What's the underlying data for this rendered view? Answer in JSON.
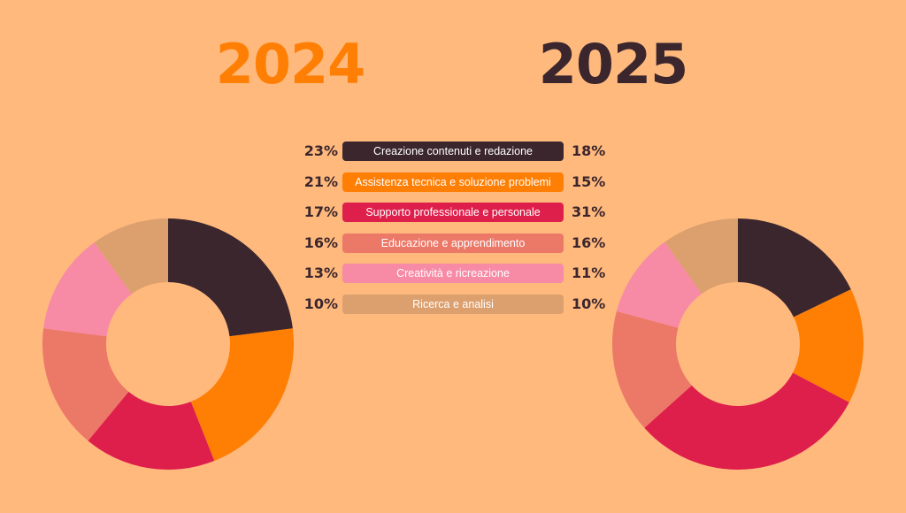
{
  "years": {
    "left": "2024",
    "right": "2025"
  },
  "colors": {
    "left_year": "#FF7F05",
    "right_year": "#3B262D"
  },
  "chart_data": {
    "type": "pie",
    "variant": "donut",
    "categories": [
      "Creazione contenuti e redazione",
      "Assistenza tecnica e soluzione problemi",
      "Supporto professionale e personale",
      "Educazione e apprendimento",
      "Creatività e ricreazione",
      "Ricerca e analisi"
    ],
    "colors": [
      "#3B262D",
      "#FF7F05",
      "#DE1F4B",
      "#EC7868",
      "#F78AA4",
      "#DCA06E"
    ],
    "text_colors": [
      "#FFFFFF",
      "#FFFFFF",
      "#FFFFFF",
      "#FFFFFF",
      "#FFFFFF",
      "#FFFFFF"
    ],
    "series": [
      {
        "name": "2024",
        "values": [
          23,
          21,
          17,
          16,
          13,
          10
        ],
        "labels": [
          "23%",
          "21%",
          "17%",
          "16%",
          "13%",
          "10%"
        ]
      },
      {
        "name": "2025",
        "values": [
          18,
          15,
          31,
          16,
          11,
          10
        ],
        "labels": [
          "18%",
          "15%",
          "31%",
          "16%",
          "11%",
          "10%"
        ]
      }
    ]
  }
}
